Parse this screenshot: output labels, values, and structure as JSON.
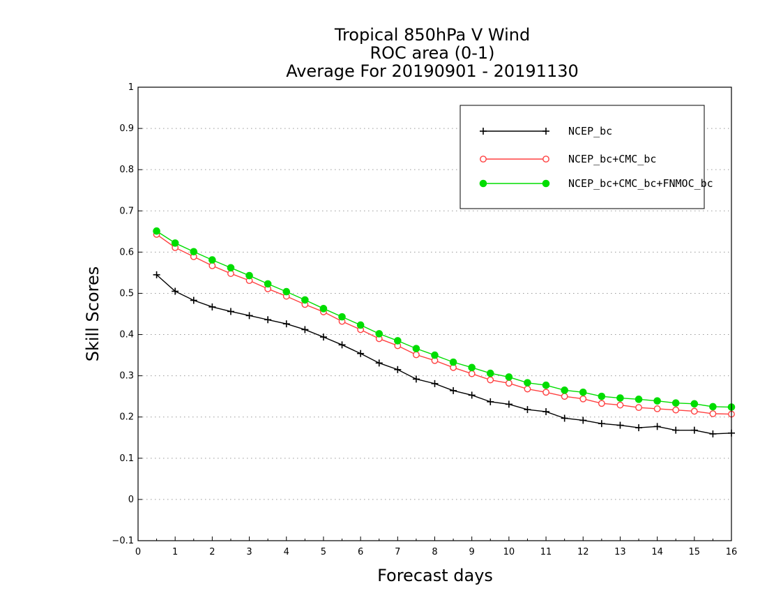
{
  "chart_data": {
    "type": "line",
    "title_lines": [
      "Tropical 850hPa V Wind",
      "ROC area (0-1)",
      "Average For 20190901 - 20191130"
    ],
    "xlabel": "Forecast days",
    "ylabel": "Skill Scores",
    "xlim": [
      0,
      16
    ],
    "ylim": [
      -0.1,
      1
    ],
    "xticks": [
      0,
      1,
      2,
      3,
      4,
      5,
      6,
      7,
      8,
      9,
      10,
      11,
      12,
      13,
      14,
      15,
      16
    ],
    "xtick_labels": [
      "0",
      "1",
      "2",
      "3",
      "4",
      "5",
      "6",
      "7",
      "8",
      "9",
      "10",
      "11",
      "12",
      "13",
      "14",
      "15",
      "16"
    ],
    "yticks": [
      -0.1,
      0,
      0.1,
      0.2,
      0.3,
      0.4,
      0.5,
      0.6,
      0.7,
      0.8,
      0.9,
      1
    ],
    "ytick_labels": [
      "−0.1",
      "0",
      "0.1",
      "0.2",
      "0.3",
      "0.4",
      "0.5",
      "0.6",
      "0.7",
      "0.8",
      "0.9",
      "1"
    ],
    "grid": "horizontal-dotted",
    "legend_position": "top-right",
    "x": [
      0.5,
      1,
      1.5,
      2,
      2.5,
      3,
      3.5,
      4,
      4.5,
      5,
      5.5,
      6,
      6.5,
      7,
      7.5,
      8,
      8.5,
      9,
      9.5,
      10,
      10.5,
      11,
      11.5,
      12,
      12.5,
      13,
      13.5,
      14,
      14.5,
      15,
      15.5,
      16
    ],
    "series": [
      {
        "name": "NCEP_bc",
        "color": "#000000",
        "marker": "plus",
        "values": [
          0.545,
          0.505,
          0.483,
          0.467,
          0.456,
          0.446,
          0.436,
          0.426,
          0.412,
          0.394,
          0.375,
          0.354,
          0.331,
          0.315,
          0.292,
          0.281,
          0.264,
          0.253,
          0.237,
          0.231,
          0.218,
          0.213,
          0.197,
          0.192,
          0.184,
          0.18,
          0.174,
          0.177,
          0.168,
          0.168,
          0.159,
          0.161
        ]
      },
      {
        "name": "NCEP_bc+CMC_bc",
        "color": "#ff4040",
        "marker": "open-circle",
        "values": [
          0.643,
          0.611,
          0.589,
          0.567,
          0.548,
          0.531,
          0.511,
          0.493,
          0.473,
          0.455,
          0.432,
          0.412,
          0.39,
          0.373,
          0.351,
          0.337,
          0.32,
          0.305,
          0.29,
          0.282,
          0.268,
          0.26,
          0.25,
          0.244,
          0.233,
          0.229,
          0.223,
          0.22,
          0.217,
          0.214,
          0.208,
          0.207
        ]
      },
      {
        "name": "NCEP_bc+CMC_bc+FNMOC_bc",
        "color": "#00dd00",
        "marker": "filled-circle",
        "values": [
          0.651,
          0.622,
          0.601,
          0.581,
          0.562,
          0.543,
          0.523,
          0.504,
          0.484,
          0.463,
          0.443,
          0.423,
          0.402,
          0.385,
          0.366,
          0.35,
          0.333,
          0.32,
          0.306,
          0.297,
          0.283,
          0.277,
          0.265,
          0.26,
          0.25,
          0.246,
          0.243,
          0.239,
          0.234,
          0.232,
          0.225,
          0.224
        ]
      }
    ]
  }
}
